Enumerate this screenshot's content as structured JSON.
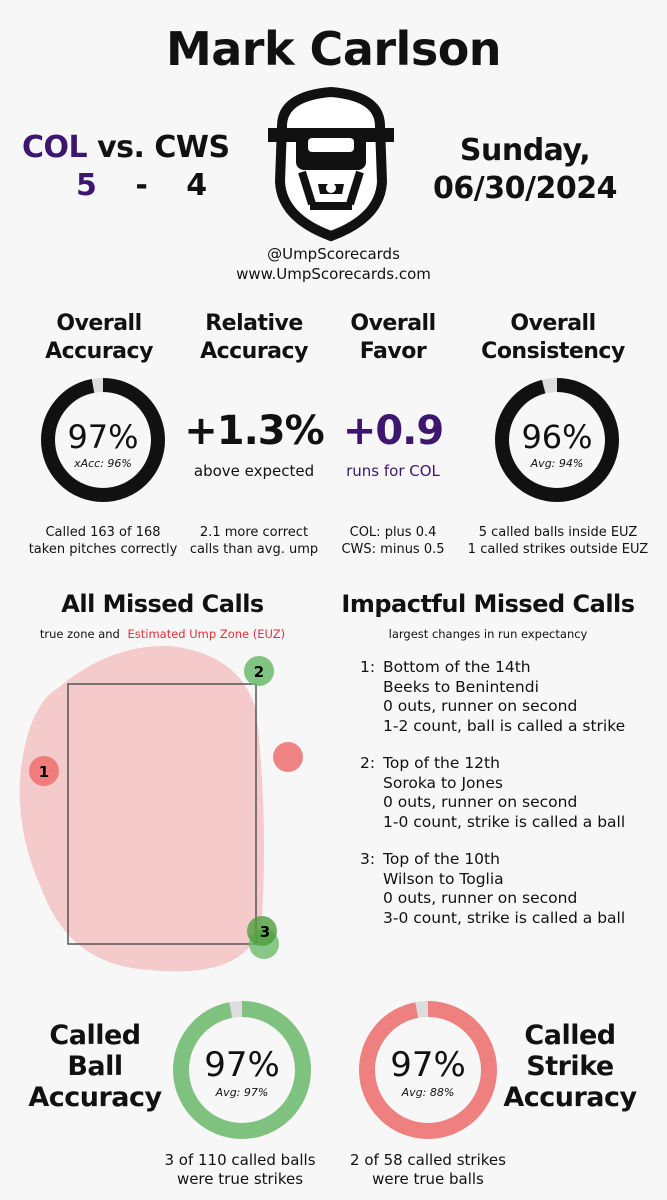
{
  "header": {
    "umpire_name": "Mark Carlson",
    "away_team": "COL",
    "vs": "vs.",
    "home_team": "CWS",
    "away_score": "5",
    "dash": "-",
    "home_score": "4",
    "day": "Sunday,",
    "date": "06/30/2024",
    "twitter": "@UmpScorecards",
    "website": "www.UmpScorecards.com"
  },
  "colors": {
    "col_purple": "#3d1670",
    "ring_dark": "#111111",
    "ball_green": "#7fc27f",
    "strike_red": "#ef8080",
    "euz_fill": "#f5caca",
    "euz_label": "#e0303a"
  },
  "overall_accuracy": {
    "heading": [
      "Overall",
      "Accuracy"
    ],
    "value": "97%",
    "fraction": 0.97,
    "sub": "xAcc: 96%",
    "footer": [
      "Called 163 of 168",
      "taken pitches correctly"
    ]
  },
  "relative_accuracy": {
    "heading": [
      "Relative",
      "Accuracy"
    ],
    "value": "+1.3%",
    "sub": "above expected",
    "footer": [
      "2.1 more correct",
      "calls than avg. ump"
    ]
  },
  "overall_favor": {
    "heading": [
      "Overall",
      "Favor"
    ],
    "value": "+0.9",
    "sub": "runs for COL",
    "footer": [
      "COL: plus 0.4",
      "CWS: minus 0.5"
    ]
  },
  "overall_consistency": {
    "heading": [
      "Overall",
      "Consistency"
    ],
    "value": "96%",
    "fraction": 0.96,
    "sub": "Avg: 94%",
    "footer": [
      "5 called balls inside EUZ",
      "1 called strikes outside EUZ"
    ]
  },
  "missed_calls": {
    "heading": "All Missed Calls",
    "note_prefix": "true zone and",
    "note_euz": "Estimated Ump Zone (EUZ)",
    "pitches": [
      {
        "label": "1",
        "type": "ball_called_strike"
      },
      {
        "label": "2",
        "type": "strike_called_ball"
      },
      {
        "label": "",
        "type": "ball_called_strike"
      },
      {
        "label": "3",
        "type": "strike_called_ball"
      },
      {
        "label": "",
        "type": "strike_called_ball"
      }
    ]
  },
  "impactful": {
    "heading": "Impactful Missed Calls",
    "note": "largest changes in run expectancy",
    "calls": [
      {
        "num": "1:",
        "inning": "Bottom of the 14th",
        "matchup": "Beeks to Benintendi",
        "situation": "0 outs, runner on second",
        "result": "1-2 count, ball is called a strike"
      },
      {
        "num": "2:",
        "inning": "Top of the 12th",
        "matchup": "Soroka to Jones",
        "situation": "0 outs, runner on second",
        "result": "1-0 count, strike is called a ball"
      },
      {
        "num": "3:",
        "inning": "Top of the 10th",
        "matchup": "Wilson to Toglia",
        "situation": "0 outs, runner on second",
        "result": "3-0 count, strike is called a ball"
      }
    ]
  },
  "called_ball": {
    "heading": [
      "Called",
      "Ball",
      "Accuracy"
    ],
    "value": "97%",
    "fraction": 0.97,
    "sub": "Avg: 97%",
    "footer": [
      "3 of 110 called balls",
      "were true strikes"
    ]
  },
  "called_strike": {
    "heading": [
      "Called",
      "Strike",
      "Accuracy"
    ],
    "value": "97%",
    "fraction": 0.97,
    "sub": "Avg: 88%",
    "footer": [
      "2 of 58 called strikes",
      "were true balls"
    ]
  }
}
